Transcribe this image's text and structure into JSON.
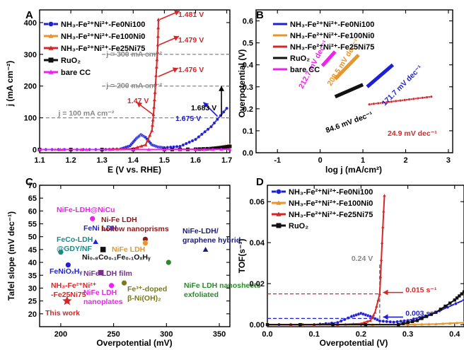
{
  "chart_data": [
    {
      "panel": "A",
      "type": "line",
      "xlabel": "E (V vs. RHE)",
      "ylabel": "j (mA cm⁻²)",
      "xlim": [
        1.1,
        1.71
      ],
      "ylim": [
        -10,
        440
      ],
      "xticks": [
        "1.1",
        "1.2",
        "1.3",
        "1.4",
        "1.5",
        "1.6",
        "1.7"
      ],
      "yticks": [
        "0",
        "100",
        "200",
        "300",
        "400"
      ],
      "legend": [
        "NH₃-Fe²⁺Ni²⁺-Fe0Ni100",
        "NH₃-Fe²⁺Ni²⁺-Fe100Ni0",
        "NH₃-Fe²⁺Ni²⁺-Fe25Ni75",
        "RuO₂",
        "bare CC"
      ],
      "series": [
        {
          "color": "#1f1fd6",
          "marker": "circle",
          "x": [
            1.1,
            1.2,
            1.3,
            1.36,
            1.39,
            1.41,
            1.425,
            1.44,
            1.46,
            1.48,
            1.5,
            1.55,
            1.6,
            1.65,
            1.7
          ],
          "y": [
            0,
            0,
            0,
            2,
            12,
            35,
            47,
            38,
            15,
            8,
            6,
            10,
            32,
            72,
            130
          ]
        },
        {
          "color": "#e8952c",
          "marker": "triangle",
          "x": [
            1.1,
            1.3,
            1.5,
            1.6,
            1.65,
            1.68,
            1.71
          ],
          "y": [
            0,
            0,
            0,
            1,
            3,
            8,
            15
          ]
        },
        {
          "color": "#d62728",
          "marker": "triangle",
          "x": [
            1.1,
            1.3,
            1.4,
            1.44,
            1.46,
            1.465,
            1.47,
            1.475,
            1.479,
            1.481
          ],
          "y": [
            0,
            0,
            3,
            15,
            60,
            110,
            180,
            260,
            330,
            410
          ]
        },
        {
          "color": "#111111",
          "marker": "square",
          "x": [
            1.1,
            1.5,
            1.6,
            1.65,
            1.68,
            1.71
          ],
          "y": [
            0,
            0,
            1,
            3,
            6,
            10
          ]
        },
        {
          "color": "#ee22ee",
          "marker": "triangle",
          "x": [
            1.1,
            1.4,
            1.6,
            1.71
          ],
          "y": [
            0,
            0,
            0,
            1
          ]
        }
      ],
      "annotations": [
        "1.481 V",
        "1.479 V",
        "1.476 V",
        "1.47 V",
        "1.683 V",
        "1.675 V",
        "j = 300 mA cm⁻²",
        "j = 200 mA cm⁻²",
        "j = 100 mA cm⁻²"
      ]
    },
    {
      "panel": "B",
      "type": "line",
      "xlabel": "log j (mA/cm²)",
      "ylabel": "Overpotential (V)",
      "xlim": [
        -1.5,
        3.1
      ],
      "ylim": [
        0,
        0.65
      ],
      "xticks": [
        "-1",
        "0",
        "1",
        "2",
        "3"
      ],
      "yticks": [
        "0.0",
        "0.1",
        "0.2",
        "0.3",
        "0.4",
        "0.5",
        "0.6"
      ],
      "legend": [
        "NH₃-Fe²⁺Ni²⁺-Fe0Ni100",
        "NH₃-Fe²⁺Ni²⁺-Fe100Ni0",
        "NH₃-Fe²⁺Ni²⁺-Fe25Ni75",
        "RuO₂",
        "bare CC"
      ],
      "series": [
        {
          "color": "#1f1fd6",
          "x": [
            1.1,
            1.7
          ],
          "y": [
            0.3,
            0.4
          ]
        },
        {
          "color": "#e8952c",
          "x": [
            0.35,
            0.9
          ],
          "y": [
            0.335,
            0.445
          ]
        },
        {
          "color": "#d62728",
          "x": [
            1.15,
            2.6
          ],
          "y": [
            0.22,
            0.255
          ]
        },
        {
          "color": "#111111",
          "x": [
            0.35,
            1.0
          ],
          "y": [
            0.255,
            0.31
          ]
        },
        {
          "color": "#ee22ee",
          "x": [
            0.05,
            0.35
          ],
          "y": [
            0.395,
            0.46
          ]
        }
      ],
      "annotations": [
        "212.7 mV dec⁻¹",
        "208.5 mV dec⁻¹",
        "171.7 mV dec⁻¹",
        "84.6 mV dec⁻¹",
        "24.9 mV dec⁻¹"
      ]
    },
    {
      "panel": "C",
      "type": "scatter",
      "xlabel": "Overpotential (mV)",
      "ylabel": "Tafel slope (mV dec⁻¹)",
      "xlim": [
        180,
        360
      ],
      "ylim": [
        15,
        70
      ],
      "xticks": [
        "200",
        "250",
        "300",
        "350"
      ],
      "yticks": [
        "20",
        "25",
        "30",
        "35",
        "40",
        "45",
        "50",
        "55",
        "60",
        "65",
        "70"
      ],
      "points": [
        {
          "label": "NiFe-LDH@NiCu",
          "x": 230,
          "y": 57,
          "color": "#ee22ee"
        },
        {
          "label": "FeCo-LDH @GDY/NF",
          "x": 200,
          "y": 44,
          "color": "#1a8a8a"
        },
        {
          "label": "FeNi LDH",
          "x": 233,
          "y": 48,
          "color": "#1f1fd6"
        },
        {
          "label": "Ni-Fe LDH hollow nanoprisms",
          "x": 280,
          "y": 49,
          "color": "#8b1a1a"
        },
        {
          "label": "NiFe LDH",
          "x": 280,
          "y": 47.5,
          "color": "#e8952c"
        },
        {
          "label": "NiFe-LDH/ graphene hybrid",
          "x": 337,
          "y": 45,
          "color": "#1a1a7a"
        },
        {
          "label": "Ni₀.₈Co₀.₁Fe₀.₁OₓHᵧ",
          "x": 240,
          "y": 45,
          "color": "#111111"
        },
        {
          "label": "FeNiOₓHᵧ",
          "x": 207,
          "y": 39,
          "color": "#1f1fd6"
        },
        {
          "label": "NiFe LDH film",
          "x": 238,
          "y": 36,
          "color": "#7b2d8e"
        },
        {
          "label": "NiFe LDH nanosheets exfoliated",
          "x": 302,
          "y": 40,
          "color": "#2a8a2a"
        },
        {
          "label": "Fe³⁺-doped β-Ni(OH)₂",
          "x": 260,
          "y": 32,
          "color": "#7a7a1a"
        },
        {
          "label": "NiFe LDH nanoplates",
          "x": 248,
          "y": 31,
          "color": "#ee22ee"
        },
        {
          "label": "NH₃-Fe²⁺Ni²⁺ -Fe25Ni75",
          "x": 206,
          "y": 25,
          "color": "#d62728"
        }
      ],
      "annotation": "This work"
    },
    {
      "panel": "D",
      "type": "line",
      "xlabel": "Overpotential (V)",
      "ylabel": "TOF(s⁻¹)",
      "xlim": [
        0,
        0.42
      ],
      "ylim": [
        -0.001,
        0.068
      ],
      "xticks": [
        "0.0",
        "0.1",
        "0.2",
        "0.3",
        "0.4"
      ],
      "yticks": [
        "0.00",
        "0.02",
        "0.04",
        "0.06"
      ],
      "legend": [
        "NH₃-Fe²⁺Ni²⁺-Fe0Ni100",
        "NH₃-Fe²⁺Ni²⁺-Fe100Ni0",
        "NH₃-Fe²⁺Ni²⁺-Fe25Ni75",
        "RuO₂"
      ],
      "series": [
        {
          "color": "#1f1fd6",
          "marker": "circle",
          "x": [
            0,
            0.1,
            0.15,
            0.18,
            0.2,
            0.22,
            0.24,
            0.27,
            0.3,
            0.35,
            0.42
          ],
          "y": [
            0,
            0,
            0.001,
            0.004,
            0.0055,
            0.004,
            0.0018,
            0.0012,
            0.002,
            0.005,
            0.012
          ]
        },
        {
          "color": "#e8952c",
          "marker": "triangle",
          "x": [
            0,
            0.3,
            0.36,
            0.42
          ],
          "y": [
            0,
            0,
            0.0003,
            0.001
          ]
        },
        {
          "color": "#d62728",
          "marker": "triangle",
          "x": [
            0,
            0.15,
            0.2,
            0.22,
            0.23,
            0.24,
            0.245,
            0.25
          ],
          "y": [
            0,
            0,
            0.0005,
            0.002,
            0.006,
            0.015,
            0.04,
            0.063
          ]
        },
        {
          "color": "#111111",
          "marker": "square",
          "x": [
            0,
            0.28,
            0.32,
            0.36,
            0.4,
            0.42
          ],
          "y": [
            0,
            0,
            0.002,
            0.006,
            0.012,
            0.016
          ]
        }
      ],
      "annotations": [
        "0.24 V",
        "0.015 s⁻¹",
        "0.003 s⁻¹"
      ]
    }
  ]
}
